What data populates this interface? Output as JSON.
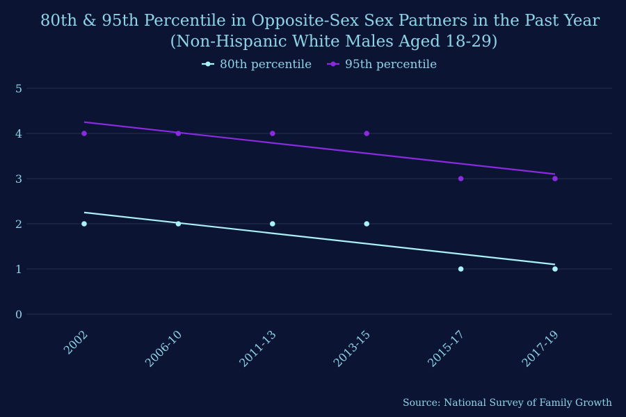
{
  "chart_data": {
    "type": "scatter",
    "title_line1": "80th & 95th Percentile in Opposite-Sex Sex Partners in the Past Year",
    "title_line2": "(Non-Hispanic White Males Aged 18-29)",
    "source": "Source: National Survey of Family Growth",
    "categories": [
      "2002",
      "2006-10",
      "2011-13",
      "2013-15",
      "2015-17",
      "2017-19"
    ],
    "ylim": [
      0,
      5
    ],
    "yticks": [
      "0",
      "1",
      "2",
      "3",
      "4",
      "5"
    ],
    "grid": true,
    "legend_position": "top",
    "series": [
      {
        "name": "80th percentile",
        "color": "#aaf2f8",
        "values": [
          2,
          2,
          2,
          2,
          1,
          1
        ],
        "trend": [
          2.25,
          2.02,
          1.79,
          1.56,
          1.33,
          1.1
        ]
      },
      {
        "name": "95th percentile",
        "color": "#8a2be2",
        "values": [
          4,
          4,
          4,
          4,
          3,
          3
        ],
        "trend": [
          4.25,
          4.02,
          3.79,
          3.56,
          3.33,
          3.1
        ]
      }
    ]
  }
}
